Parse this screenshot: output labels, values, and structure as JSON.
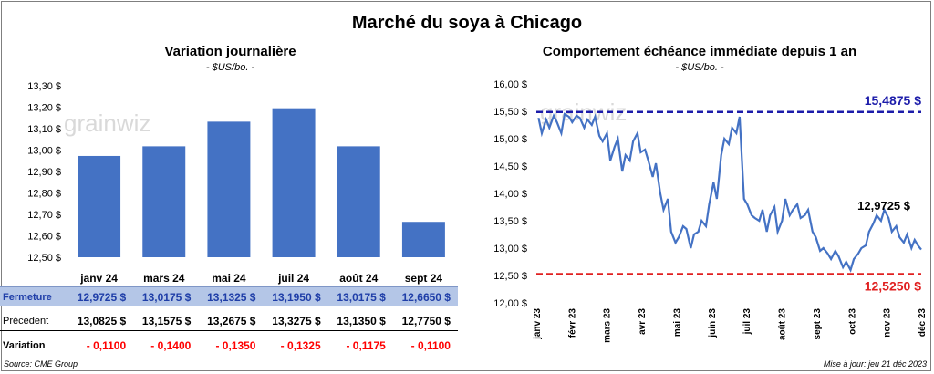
{
  "header": {
    "title": "Marché du soya à Chicago"
  },
  "left_chart": {
    "title": "Variation journalière",
    "unit": "- $US/bo. -"
  },
  "right_chart": {
    "title": "Comportement échéance immédiate depuis 1 an",
    "unit": "- $US/bo. -"
  },
  "watermark": "grainwiz",
  "table": {
    "columns": [
      "janv 24",
      "mars 24",
      "mai 24",
      "juil 24",
      "août 24",
      "sept 24"
    ],
    "rows": [
      {
        "label": "Fermeture",
        "values": [
          "12,9725",
          "13,0175",
          "13,1325",
          "13,1950",
          "13,0175",
          "12,6650"
        ]
      },
      {
        "label": "Précédent",
        "values": [
          "13,0825",
          "13,1575",
          "13,2675",
          "13,3275",
          "13,1350",
          "12,7750"
        ]
      },
      {
        "label": "Variation",
        "values": [
          "- 0,1100",
          "- 0,1400",
          "- 0,1350",
          "- 0,1325",
          "- 0,1175",
          "- 0,1100"
        ]
      }
    ],
    "currency": "$"
  },
  "footer": {
    "source": "Source: CME Group",
    "updated": "Mise à jour: jeu 21 déc 2023"
  },
  "colors": {
    "bar": "#4472c4",
    "line": "#4472c4",
    "high": "#1c1caa",
    "low": "#e02020",
    "table_fill": "#b4c6e7"
  },
  "chart_data": [
    {
      "type": "bar",
      "categories": [
        "janv 24",
        "mars 24",
        "mai 24",
        "juil 24",
        "août 24",
        "sept 24"
      ],
      "values": [
        12.9725,
        13.0175,
        13.1325,
        13.195,
        13.0175,
        12.665
      ],
      "ylim": [
        12.5,
        13.3
      ],
      "yticks": [
        "12,50 $",
        "12,60 $",
        "12,70 $",
        "12,80 $",
        "12,90 $",
        "13,00 $",
        "13,10 $",
        "13,20 $",
        "13,30 $"
      ],
      "ytick_values": [
        12.5,
        12.6,
        12.7,
        12.8,
        12.9,
        13.0,
        13.1,
        13.2,
        13.3
      ],
      "grid": false
    },
    {
      "type": "line",
      "ylim": [
        12.0,
        16.0
      ],
      "yticks": [
        "12,00 $",
        "12,50 $",
        "13,00 $",
        "13,50 $",
        "14,00 $",
        "14,50 $",
        "15,00 $",
        "15,50 $",
        "16,00 $"
      ],
      "ytick_values": [
        12.0,
        12.5,
        13.0,
        13.5,
        14.0,
        14.5,
        15.0,
        15.5,
        16.0
      ],
      "xticks": [
        "janv 23",
        "févr 23",
        "mars 23",
        "avr 23",
        "mai 23",
        "juin 23",
        "juil 23",
        "août 23",
        "sept 23",
        "oct 23",
        "nov 23",
        "déc 23"
      ],
      "x_range": [
        "2023-01-01",
        "2023-12-21"
      ],
      "high": {
        "value": 15.4875,
        "label": "15,4875 $"
      },
      "low": {
        "value": 12.525,
        "label": "12,5250 $"
      },
      "last": {
        "value": 12.9725,
        "label": "12,9725 $"
      },
      "series": [
        {
          "x": [
            "2023-01-03",
            "2023-01-06",
            "2023-01-10",
            "2023-01-13",
            "2023-01-17",
            "2023-01-20",
            "2023-01-24",
            "2023-01-27",
            "2023-01-31",
            "2023-02-03",
            "2023-02-07",
            "2023-02-10",
            "2023-02-14",
            "2023-02-17",
            "2023-02-21",
            "2023-02-24",
            "2023-02-28",
            "2023-03-03",
            "2023-03-07",
            "2023-03-10",
            "2023-03-14",
            "2023-03-17",
            "2023-03-21",
            "2023-03-24",
            "2023-03-28",
            "2023-03-31",
            "2023-04-04",
            "2023-04-07",
            "2023-04-11",
            "2023-04-14",
            "2023-04-18",
            "2023-04-21",
            "2023-04-25",
            "2023-04-28",
            "2023-05-02",
            "2023-05-05",
            "2023-05-09",
            "2023-05-12",
            "2023-05-16",
            "2023-05-19",
            "2023-05-23",
            "2023-05-26",
            "2023-05-30",
            "2023-06-02",
            "2023-06-06",
            "2023-06-09",
            "2023-06-13",
            "2023-06-16",
            "2023-06-20",
            "2023-06-23",
            "2023-06-27",
            "2023-06-30",
            "2023-07-04",
            "2023-07-07",
            "2023-07-11",
            "2023-07-14",
            "2023-07-18",
            "2023-07-21",
            "2023-07-25",
            "2023-07-28",
            "2023-08-01",
            "2023-08-04",
            "2023-08-08",
            "2023-08-11",
            "2023-08-15",
            "2023-08-18",
            "2023-08-22",
            "2023-08-25",
            "2023-08-29",
            "2023-09-01",
            "2023-09-05",
            "2023-09-08",
            "2023-09-12",
            "2023-09-15",
            "2023-09-19",
            "2023-09-22",
            "2023-09-26",
            "2023-09-29",
            "2023-10-03",
            "2023-10-06",
            "2023-10-10",
            "2023-10-13",
            "2023-10-17",
            "2023-10-20",
            "2023-10-24",
            "2023-10-27",
            "2023-10-31",
            "2023-11-03",
            "2023-11-07",
            "2023-11-10",
            "2023-11-14",
            "2023-11-17",
            "2023-11-21",
            "2023-11-24",
            "2023-11-28",
            "2023-12-01",
            "2023-12-05",
            "2023-12-08",
            "2023-12-12",
            "2023-12-15",
            "2023-12-18",
            "2023-12-21"
          ],
          "y": [
            15.38,
            15.1,
            15.35,
            15.2,
            15.42,
            15.3,
            15.1,
            15.45,
            15.4,
            15.3,
            15.42,
            15.38,
            15.2,
            15.35,
            15.25,
            15.4,
            15.05,
            14.95,
            15.1,
            14.6,
            14.85,
            15.0,
            14.4,
            14.7,
            14.6,
            14.95,
            15.1,
            14.75,
            14.8,
            14.6,
            14.3,
            14.55,
            14.0,
            13.7,
            13.9,
            13.3,
            13.1,
            13.2,
            13.4,
            13.35,
            13.0,
            13.25,
            13.3,
            13.5,
            13.4,
            13.8,
            14.2,
            13.9,
            14.7,
            15.0,
            14.9,
            15.2,
            15.1,
            15.4,
            13.9,
            13.8,
            13.6,
            13.55,
            13.5,
            13.7,
            13.3,
            13.6,
            13.75,
            13.3,
            13.5,
            13.9,
            13.6,
            13.7,
            13.8,
            13.55,
            13.6,
            13.7,
            13.3,
            13.2,
            12.95,
            13.0,
            12.9,
            12.8,
            12.95,
            12.85,
            12.65,
            12.75,
            12.6,
            12.8,
            12.9,
            13.0,
            13.05,
            13.3,
            13.45,
            13.6,
            13.5,
            13.7,
            13.55,
            13.3,
            13.4,
            13.2,
            13.1,
            13.25,
            13.0,
            13.15,
            13.05,
            12.9725
          ]
        }
      ],
      "grid": false
    }
  ]
}
